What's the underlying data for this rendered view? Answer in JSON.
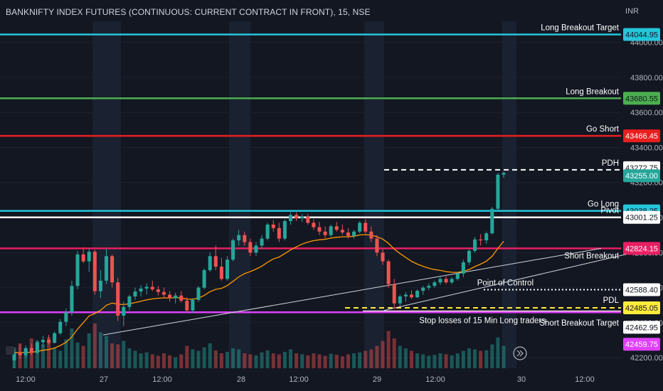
{
  "header": {
    "title": "BANKNIFTY INDEX FUTURES (CONTINUOUS: CURRENT CONTRACT IN FRONT), 15, NSE",
    "currency": "INR"
  },
  "chart_data": {
    "type": "candlestick",
    "ylim": [
      42140,
      44120
    ],
    "x_ticks": [
      "12:00",
      "27",
      "12:00",
      "28",
      "12:00",
      "29",
      "12:00",
      "30",
      "12:00"
    ],
    "y_ticks": [
      42200.0,
      42400.0,
      42600.0,
      42800.0,
      43000.0,
      43200.0,
      43400.0,
      43600.0,
      43800.0,
      44000.0
    ],
    "levels": [
      {
        "label": "Long Breakout Target",
        "price": 44044.95,
        "price_label": "44044.95",
        "color": "#26c6da",
        "style": "solid"
      },
      {
        "label": "Long Breakout",
        "price": 43680.55,
        "price_label": "43680.55",
        "color": "#4caf50",
        "style": "solid"
      },
      {
        "label": "Go Short",
        "price": 43466.45,
        "price_label": "43466.45",
        "color": "#e91e1e",
        "style": "solid"
      },
      {
        "label": "PDH",
        "price": 43272.75,
        "price_label": "43272.75",
        "color": "#ffffff",
        "style": "dashed"
      },
      {
        "label": "",
        "price": 43255.0,
        "price_label": "43255.00",
        "color": "#26a69a",
        "style": "none"
      },
      {
        "label": "Go Long",
        "price": 43038.25,
        "price_label": "43038.25",
        "color": "#26c6da",
        "style": "solid"
      },
      {
        "label": "Pivot",
        "price": 43001.25,
        "price_label": "43001.25",
        "color": "#ffffff",
        "style": "solid"
      },
      {
        "label": "",
        "price": 42824.15,
        "price_label": "42824.15",
        "color": "#e91e63",
        "style": "solid"
      },
      {
        "label": "Short Breakout",
        "price": 42824.15,
        "price_label": "",
        "color": "#ffffff",
        "style": "none"
      },
      {
        "label": "Point of Control",
        "price": 42588.4,
        "price_label": "42588.40",
        "color": "#ffffff",
        "style": "dotted"
      },
      {
        "label": "PDL",
        "price": 42485.05,
        "price_label": "42485.05",
        "color": "#ffeb3b",
        "style": "dashed"
      },
      {
        "label": "Stop losses of  15 Min Long traders",
        "price": 42462.95,
        "price_label": "42462.95",
        "color": "#ffffff",
        "style": "solid"
      },
      {
        "label": "Short Breakout Target",
        "price": 42459.75,
        "price_label": "42459.75",
        "color": "#e040fb",
        "style": "solid"
      }
    ],
    "candles": [
      [
        42185,
        42248,
        42140,
        42230
      ],
      [
        42230,
        42275,
        42195,
        42215
      ],
      [
        42215,
        42270,
        42200,
        42255
      ],
      [
        42255,
        42280,
        42215,
        42228
      ],
      [
        42228,
        42300,
        42222,
        42288
      ],
      [
        42288,
        42325,
        42260,
        42302
      ],
      [
        42302,
        42330,
        42275,
        42285
      ],
      [
        42285,
        42350,
        42282,
        42340
      ],
      [
        42340,
        42420,
        42330,
        42405
      ],
      [
        42405,
        42480,
        42380,
        42460
      ],
      [
        42460,
        42640,
        42440,
        42610
      ],
      [
        42610,
        42810,
        42590,
        42790
      ],
      [
        42790,
        42830,
        42740,
        42750
      ],
      [
        42750,
        42825,
        42690,
        42805
      ],
      [
        42805,
        42815,
        42560,
        42580
      ],
      [
        42580,
        42700,
        42540,
        42640
      ],
      [
        42640,
        42820,
        42620,
        42780
      ],
      [
        42780,
        42790,
        42600,
        42630
      ],
      [
        42630,
        42655,
        42410,
        42440
      ],
      [
        42440,
        42520,
        42380,
        42490
      ],
      [
        42490,
        42560,
        42470,
        42550
      ],
      [
        42550,
        42600,
        42530,
        42578
      ],
      [
        42578,
        42615,
        42550,
        42595
      ],
      [
        42595,
        42625,
        42560,
        42605
      ],
      [
        42605,
        42640,
        42580,
        42590
      ],
      [
        42590,
        42610,
        42555,
        42575
      ],
      [
        42575,
        42600,
        42540,
        42560
      ],
      [
        42560,
        42580,
        42520,
        42540
      ],
      [
        42540,
        42570,
        42510,
        42555
      ],
      [
        42555,
        42580,
        42515,
        42525
      ],
      [
        42525,
        42545,
        42460,
        42470
      ],
      [
        42470,
        42540,
        42455,
        42530
      ],
      [
        42530,
        42610,
        42520,
        42600
      ],
      [
        42600,
        42710,
        42590,
        42700
      ],
      [
        42700,
        42800,
        42690,
        42780
      ],
      [
        42780,
        42840,
        42700,
        42720
      ],
      [
        42720,
        42770,
        42640,
        42650
      ],
      [
        42650,
        42780,
        42640,
        42760
      ],
      [
        42760,
        42880,
        42750,
        42870
      ],
      [
        42870,
        42930,
        42840,
        42900
      ],
      [
        42900,
        42920,
        42840,
        42860
      ],
      [
        42860,
        42880,
        42780,
        42800
      ],
      [
        42800,
        42860,
        42780,
        42840
      ],
      [
        42840,
        42900,
        42820,
        42880
      ],
      [
        42880,
        42970,
        42870,
        42960
      ],
      [
        42960,
        42985,
        42920,
        42940
      ],
      [
        42940,
        42970,
        42860,
        42880
      ],
      [
        42880,
        42990,
        42870,
        42980
      ],
      [
        42980,
        43030,
        42960,
        43015
      ],
      [
        43015,
        43030,
        42980,
        42995
      ],
      [
        42995,
        43020,
        42975,
        43005
      ],
      [
        43005,
        43020,
        42960,
        42970
      ],
      [
        42970,
        42990,
        42930,
        42945
      ],
      [
        42945,
        42975,
        42900,
        42920
      ],
      [
        42920,
        42950,
        42880,
        42900
      ],
      [
        42900,
        42960,
        42890,
        42950
      ],
      [
        42950,
        42975,
        42920,
        42930
      ],
      [
        42930,
        42960,
        42900,
        42915
      ],
      [
        42915,
        42940,
        42880,
        42895
      ],
      [
        42895,
        42930,
        42880,
        42920
      ],
      [
        42920,
        42980,
        42910,
        42970
      ],
      [
        42970,
        42990,
        42910,
        42920
      ],
      [
        42920,
        42950,
        42860,
        42880
      ],
      [
        42880,
        42900,
        42780,
        42800
      ],
      [
        42800,
        42820,
        42730,
        42750
      ],
      [
        42750,
        42760,
        42600,
        42620
      ],
      [
        42620,
        42650,
        42480,
        42510
      ],
      [
        42510,
        42560,
        42490,
        42550
      ],
      [
        42550,
        42575,
        42520,
        42560
      ],
      [
        42560,
        42585,
        42535,
        42545
      ],
      [
        42545,
        42590,
        42540,
        42582
      ],
      [
        42582,
        42610,
        42560,
        42600
      ],
      [
        42600,
        42625,
        42585,
        42610
      ],
      [
        42610,
        42640,
        42600,
        42630
      ],
      [
        42630,
        42660,
        42615,
        42650
      ],
      [
        42650,
        42665,
        42620,
        42630
      ],
      [
        42630,
        42660,
        42620,
        42650
      ],
      [
        42650,
        42690,
        42640,
        42680
      ],
      [
        42680,
        42760,
        42660,
        42745
      ],
      [
        42745,
        42820,
        42730,
        42810
      ],
      [
        42810,
        42890,
        42800,
        42875
      ],
      [
        42875,
        42905,
        42840,
        42870
      ],
      [
        42870,
        42920,
        42850,
        42910
      ],
      [
        42910,
        43060,
        42905,
        43050
      ],
      [
        43050,
        43255,
        43040,
        43245
      ],
      [
        43245,
        43262,
        43228,
        43255
      ]
    ],
    "volumes": [
      0.42,
      0.5,
      0.38,
      0.6,
      0.55,
      0.48,
      0.62,
      0.4,
      0.35,
      0.58,
      0.8,
      0.52,
      0.45,
      0.7,
      0.9,
      0.72,
      0.65,
      0.5,
      0.48,
      0.55,
      0.4,
      0.35,
      0.3,
      0.32,
      0.28,
      0.25,
      0.3,
      0.26,
      0.22,
      0.28,
      0.45,
      0.38,
      0.35,
      0.42,
      0.5,
      0.36,
      0.3,
      0.33,
      0.4,
      0.38,
      0.3,
      0.28,
      0.26,
      0.32,
      0.36,
      0.3,
      0.28,
      0.33,
      0.38,
      0.3,
      0.28,
      0.26,
      0.3,
      0.28,
      0.25,
      0.29,
      0.27,
      0.24,
      0.28,
      0.3,
      0.32,
      0.35,
      0.38,
      0.45,
      0.55,
      0.75,
      0.6,
      0.45,
      0.4,
      0.35,
      0.3,
      0.28,
      0.25,
      0.27,
      0.3,
      0.28,
      0.26,
      0.3,
      0.35,
      0.4,
      0.38,
      0.35,
      0.36,
      0.48,
      0.62,
      0.45
    ]
  }
}
